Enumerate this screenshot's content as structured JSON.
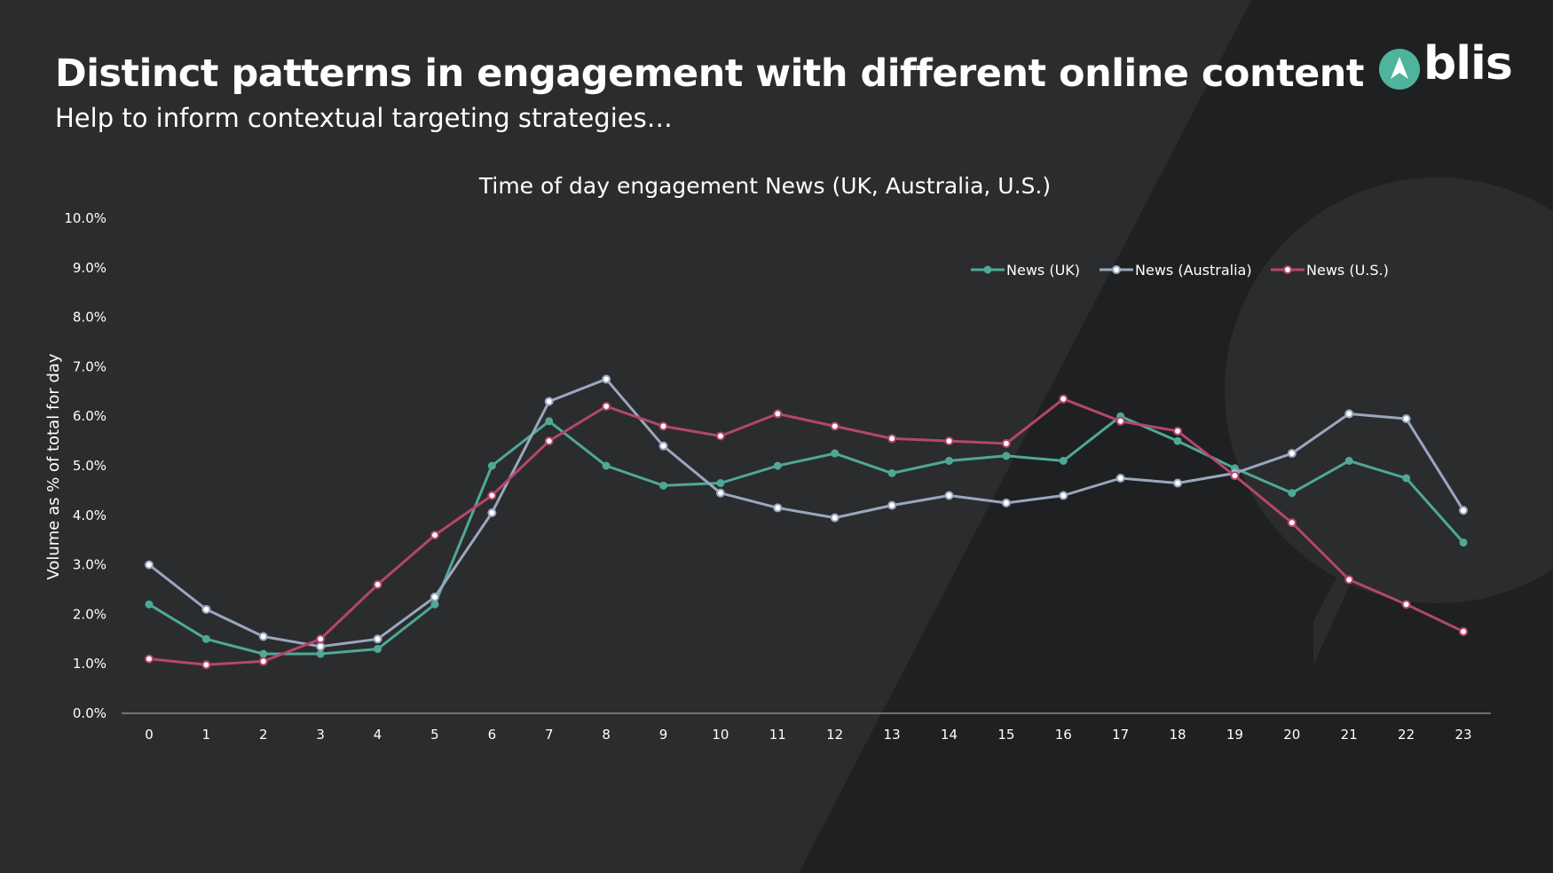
{
  "header": {
    "title": "Distinct patterns in engagement with different online content",
    "subtitle": "Help to inform contextual targeting strategies…",
    "logo_text": "blis"
  },
  "colors": {
    "background": "#2b2c2e",
    "uk": "#4fa896",
    "australia": "#9aa7bf",
    "us": "#b4466c",
    "accent_logo": "#4fb49c"
  },
  "chart_data": {
    "type": "line",
    "title": "Time of day engagement News (UK, Australia, U.S.)",
    "xlabel": "",
    "ylabel": "Volume as % of total for day",
    "ylim": [
      0,
      10
    ],
    "y_ticks": [
      "0.0%",
      "1.0%",
      "2.0%",
      "3.0%",
      "4.0%",
      "5.0%",
      "6.0%",
      "7.0%",
      "8.0%",
      "9.0%",
      "10.0%"
    ],
    "x": [
      "0",
      "1",
      "2",
      "3",
      "4",
      "5",
      "6",
      "7",
      "8",
      "9",
      "10",
      "11",
      "12",
      "13",
      "14",
      "15",
      "16",
      "17",
      "18",
      "19",
      "20",
      "21",
      "22",
      "23"
    ],
    "legend_position": "top-right",
    "grid": false,
    "series": [
      {
        "name": "News (UK)",
        "color": "#4fa896",
        "marker": "filled",
        "values": [
          2.2,
          1.5,
          1.2,
          1.2,
          1.3,
          2.2,
          5.0,
          5.9,
          5.0,
          4.6,
          4.65,
          5.0,
          5.25,
          4.85,
          5.1,
          5.2,
          5.1,
          6.0,
          5.5,
          4.95,
          4.45,
          5.1,
          4.75,
          3.45
        ]
      },
      {
        "name": "News (Australia)",
        "color": "#9aa7bf",
        "marker": "hollow",
        "values": [
          3.0,
          2.1,
          1.55,
          1.35,
          1.5,
          2.35,
          4.05,
          6.3,
          6.75,
          5.4,
          4.45,
          4.15,
          3.95,
          4.2,
          4.4,
          4.25,
          4.4,
          4.75,
          4.65,
          4.85,
          5.25,
          6.05,
          5.95,
          4.1
        ]
      },
      {
        "name": "News (U.S.)",
        "color": "#b4466c",
        "marker": "hollow",
        "values": [
          1.1,
          0.98,
          1.05,
          1.5,
          2.6,
          3.6,
          4.4,
          5.5,
          6.2,
          5.8,
          5.6,
          6.05,
          5.8,
          5.55,
          5.5,
          5.45,
          6.35,
          5.9,
          5.7,
          4.8,
          3.85,
          2.7,
          2.2,
          1.65
        ]
      }
    ]
  }
}
